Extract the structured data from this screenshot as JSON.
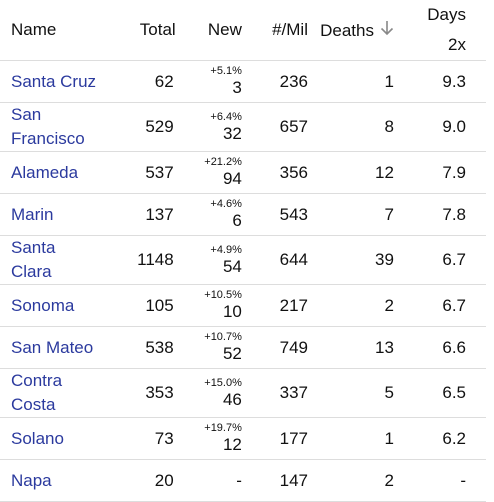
{
  "table": {
    "headers": [
      "Name",
      "Total",
      "New",
      "#/Mil",
      "Deaths",
      "Days 2x"
    ],
    "rows": [
      {
        "name": "Santa Cruz",
        "total": "62",
        "new_pct": "+5.1%",
        "new": "3",
        "per_mil": "236",
        "deaths": "1",
        "days": "9.3"
      },
      {
        "name": "San Francisco",
        "total": "529",
        "new_pct": "+6.4%",
        "new": "32",
        "per_mil": "657",
        "deaths": "8",
        "days": "9.0"
      },
      {
        "name": "Alameda",
        "total": "537",
        "new_pct": "+21.2%",
        "new": "94",
        "per_mil": "356",
        "deaths": "12",
        "days": "7.9"
      },
      {
        "name": "Marin",
        "total": "137",
        "new_pct": "+4.6%",
        "new": "6",
        "per_mil": "543",
        "deaths": "7",
        "days": "7.8"
      },
      {
        "name": "Santa Clara",
        "total": "1148",
        "new_pct": "+4.9%",
        "new": "54",
        "per_mil": "644",
        "deaths": "39",
        "days": "6.7"
      },
      {
        "name": "Sonoma",
        "total": "105",
        "new_pct": "+10.5%",
        "new": "10",
        "per_mil": "217",
        "deaths": "2",
        "days": "6.7"
      },
      {
        "name": "San Mateo",
        "total": "538",
        "new_pct": "+10.7%",
        "new": "52",
        "per_mil": "749",
        "deaths": "13",
        "days": "6.6"
      },
      {
        "name": "Contra Costa",
        "total": "353",
        "new_pct": "+15.0%",
        "new": "46",
        "per_mil": "337",
        "deaths": "5",
        "days": "6.5"
      },
      {
        "name": "Solano",
        "total": "73",
        "new_pct": "+19.7%",
        "new": "12",
        "per_mil": "177",
        "deaths": "1",
        "days": "6.2"
      },
      {
        "name": "Napa",
        "total": "20",
        "new": "-",
        "per_mil": "147",
        "deaths": "2",
        "days": "-"
      }
    ]
  }
}
